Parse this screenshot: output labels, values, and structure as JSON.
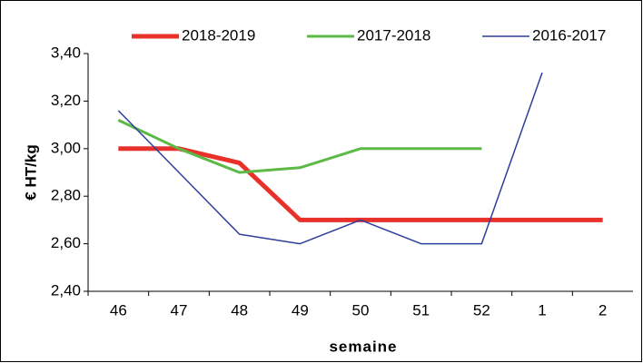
{
  "chart_data": {
    "type": "line",
    "y_label": "€ HT/kg",
    "x_label": "semaine",
    "categories": [
      "46",
      "47",
      "48",
      "49",
      "50",
      "51",
      "52",
      "1",
      "2"
    ],
    "series": [
      {
        "name": "2018-2019",
        "color": "#e8312a",
        "values": [
          3.0,
          3.0,
          2.94,
          2.7,
          2.7,
          2.7,
          2.7,
          2.7,
          2.7
        ]
      },
      {
        "name": "2017-2018",
        "color": "#5cb946",
        "values": [
          3.12,
          3.0,
          2.9,
          2.92,
          3.0,
          3.0,
          3.0,
          null,
          null
        ]
      },
      {
        "name": "2016-2017",
        "color": "#2e3e9c",
        "values": [
          3.16,
          2.9,
          2.64,
          2.6,
          2.7,
          2.6,
          2.6,
          3.32,
          null
        ]
      }
    ],
    "ylim": [
      2.4,
      3.4
    ],
    "yticks": [
      {
        "value": 2.4,
        "label": "2,40"
      },
      {
        "value": 2.6,
        "label": "2,60"
      },
      {
        "value": 2.8,
        "label": "2,80"
      },
      {
        "value": 3.0,
        "label": "3,00"
      },
      {
        "value": 3.2,
        "label": "3,20"
      },
      {
        "value": 3.4,
        "label": "3,40"
      }
    ],
    "legend": "top"
  }
}
